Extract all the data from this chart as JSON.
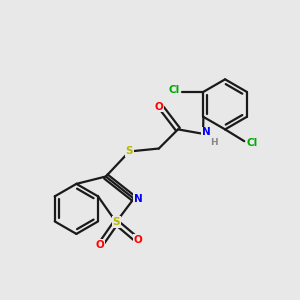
{
  "background_color": "#e8e8e8",
  "bond_color": "#1a1a1a",
  "atom_colors": {
    "O": "#ff0000",
    "N": "#0000ff",
    "S": "#b8b800",
    "Cl": "#00aa00",
    "H": "#888888",
    "C": "#1a1a1a"
  }
}
